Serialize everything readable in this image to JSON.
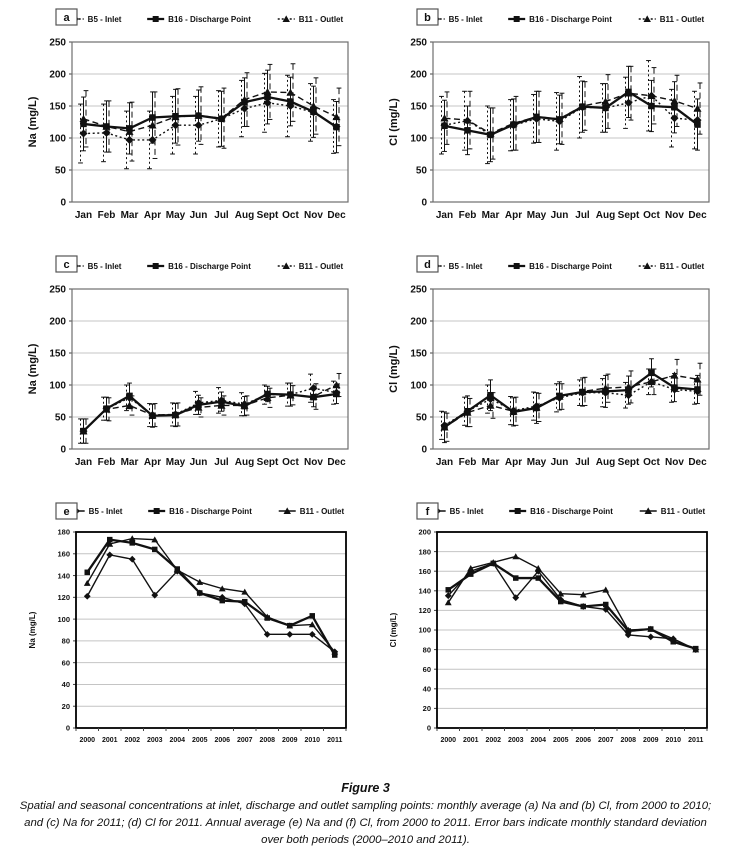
{
  "figure": {
    "title": "Figure 3",
    "caption": "Spatial and seasonal concentrations at inlet, discharge and outlet sampling points: monthly average (a) Na and (b) Cl, from 2000 to 2010; and (c) Na for 2011; (d) Cl for 2011. Annual average (e) Na and (f) Cl, from 2000 to 2011. Error bars indicate monthly standard deviation over both periods (2000–2010 and 2011)."
  },
  "colors": {
    "line": "#111111",
    "grid": "#c4c4c4",
    "monthly_border": "#6e6e6e",
    "annual_border": "#000000"
  },
  "chart_data": [
    {
      "id": "a",
      "panel_label": "a",
      "type": "line",
      "variant": "monthly",
      "ylabel": "Na (mg/L)",
      "ylim": [
        0,
        250
      ],
      "ytick_step": 50,
      "grid": true,
      "legend_position": "top",
      "error_bars": true,
      "categories": [
        "Jan",
        "Feb",
        "Mar",
        "Apr",
        "May",
        "Jun",
        "Jul",
        "Aug",
        "Sept",
        "Oct",
        "Nov",
        "Dec"
      ],
      "series": [
        {
          "name": "B5 - Inlet",
          "marker": "diamond",
          "line": "dotted",
          "values": [
            107,
            108,
            97,
            97,
            120,
            120,
            130,
            146,
            155,
            150,
            140,
            118
          ],
          "err": [
            46,
            45,
            45,
            45,
            45,
            45,
            44,
            44,
            46,
            48,
            45,
            42
          ]
        },
        {
          "name": "B16 - Discharge Point",
          "marker": "square",
          "line": "solid",
          "values": [
            122,
            118,
            115,
            132,
            134,
            135,
            130,
            156,
            164,
            157,
            141,
            117
          ],
          "err": [
            42,
            40,
            40,
            40,
            42,
            40,
            43,
            38,
            42,
            38,
            40,
            40
          ]
        },
        {
          "name": "B11 - Outlet",
          "marker": "triangle",
          "line": "dashed",
          "values": [
            130,
            118,
            110,
            120,
            133,
            135,
            131,
            160,
            172,
            171,
            150,
            133
          ],
          "err": [
            44,
            40,
            46,
            52,
            44,
            45,
            47,
            42,
            43,
            45,
            44,
            45
          ]
        }
      ]
    },
    {
      "id": "b",
      "panel_label": "b",
      "type": "line",
      "variant": "monthly",
      "ylabel": "Cl (mg/L)",
      "ylim": [
        0,
        250
      ],
      "ytick_step": 50,
      "grid": true,
      "legend_position": "top",
      "error_bars": true,
      "categories": [
        "Jan",
        "Feb",
        "Mar",
        "Apr",
        "May",
        "Jun",
        "Jul",
        "Aug",
        "Sept",
        "Oct",
        "Nov",
        "Dec"
      ],
      "series": [
        {
          "name": "B5 - Inlet",
          "marker": "diamond",
          "line": "dotted",
          "values": [
            120,
            127,
            105,
            120,
            130,
            126,
            148,
            147,
            155,
            166,
            131,
            128
          ],
          "err": [
            45,
            46,
            45,
            40,
            38,
            45,
            48,
            38,
            40,
            55,
            45,
            45
          ]
        },
        {
          "name": "B16 - Discharge Point",
          "marker": "square",
          "line": "solid",
          "values": [
            119,
            112,
            105,
            121,
            133,
            129,
            149,
            147,
            172,
            150,
            148,
            121
          ],
          "err": [
            40,
            38,
            42,
            40,
            40,
            38,
            40,
            38,
            40,
            40,
            40,
            40
          ]
        },
        {
          "name": "B11 - Outlet",
          "marker": "triangle",
          "line": "dashed",
          "values": [
            131,
            128,
            107,
            123,
            133,
            130,
            150,
            157,
            170,
            166,
            158,
            146
          ],
          "err": [
            41,
            45,
            40,
            42,
            40,
            40,
            38,
            42,
            42,
            44,
            40,
            40
          ]
        }
      ]
    },
    {
      "id": "c",
      "panel_label": "c",
      "type": "line",
      "variant": "monthly",
      "ylabel": "Na (mg/L)",
      "ylim": [
        0,
        250
      ],
      "ytick_step": 50,
      "grid": true,
      "legend_position": "top",
      "error_bars": true,
      "categories": [
        "Jan",
        "Feb",
        "Mar",
        "Apr",
        "May",
        "Jun",
        "Jul",
        "Aug",
        "Sept",
        "Oct",
        "Nov",
        "Dec"
      ],
      "series": [
        {
          "name": "B5 - Inlet",
          "marker": "diamond",
          "line": "dotted",
          "values": [
            28,
            63,
            80,
            53,
            54,
            72,
            76,
            70,
            85,
            85,
            95,
            88
          ],
          "err": [
            19,
            18,
            20,
            18,
            18,
            18,
            20,
            18,
            15,
            18,
            22,
            18
          ]
        },
        {
          "name": "B16 - Discharge Point",
          "marker": "square",
          "line": "solid",
          "values": [
            28,
            63,
            83,
            52,
            53,
            69,
            74,
            67,
            86,
            85,
            81,
            86
          ],
          "err": [
            19,
            18,
            20,
            18,
            18,
            15,
            15,
            15,
            12,
            18,
            15,
            15
          ]
        },
        {
          "name": "B11 - Outlet",
          "marker": "triangle",
          "line": "dashed",
          "values": [
            28,
            62,
            68,
            53,
            54,
            65,
            68,
            68,
            80,
            84,
            82,
            100
          ],
          "err": [
            19,
            18,
            15,
            18,
            18,
            15,
            15,
            15,
            15,
            15,
            20,
            18
          ]
        }
      ]
    },
    {
      "id": "d",
      "panel_label": "d",
      "type": "line",
      "variant": "monthly",
      "ylabel": "Cl (mg/L)",
      "ylim": [
        0,
        250
      ],
      "ytick_step": 50,
      "grid": true,
      "legend_position": "top",
      "error_bars": true,
      "categories": [
        "Jan",
        "Feb",
        "Mar",
        "Apr",
        "May",
        "Jun",
        "Jul",
        "Aug",
        "Sept",
        "Oct",
        "Nov",
        "Dec"
      ],
      "series": [
        {
          "name": "B5 - Inlet",
          "marker": "diamond",
          "line": "dotted",
          "values": [
            37,
            59,
            78,
            60,
            67,
            80,
            88,
            88,
            84,
            105,
            93,
            90
          ],
          "err": [
            22,
            22,
            22,
            22,
            22,
            22,
            20,
            22,
            20,
            20,
            20,
            20
          ]
        },
        {
          "name": "B16 - Discharge Point",
          "marker": "square",
          "line": "solid",
          "values": [
            34,
            59,
            84,
            58,
            64,
            83,
            89,
            90,
            92,
            119,
            96,
            93
          ],
          "err": [
            24,
            24,
            24,
            22,
            24,
            22,
            22,
            25,
            22,
            22,
            22,
            22
          ]
        },
        {
          "name": "B11 - Outlet",
          "marker": "triangle",
          "line": "dashed",
          "values": [
            34,
            57,
            68,
            59,
            65,
            82,
            90,
            95,
            97,
            105,
            115,
            109
          ],
          "err": [
            22,
            22,
            20,
            22,
            22,
            20,
            22,
            22,
            25,
            20,
            25,
            25
          ]
        }
      ]
    },
    {
      "id": "e",
      "panel_label": "e",
      "type": "line",
      "variant": "annual",
      "ylabel": "Na (mg/L)",
      "ylim": [
        0,
        180
      ],
      "ytick_step": 20,
      "grid": true,
      "legend_position": "top",
      "error_bars": false,
      "categories": [
        "2000",
        "2001",
        "2002",
        "2003",
        "2004",
        "2005",
        "2006",
        "2007",
        "2008",
        "2009",
        "2010",
        "2011"
      ],
      "series": [
        {
          "name": "B5 - Inlet",
          "marker": "diamond",
          "line": "solid",
          "values": [
            121,
            159,
            155,
            122,
            144,
            124,
            120,
            114,
            86,
            86,
            86,
            70
          ]
        },
        {
          "name": "B16 - Discharge Point",
          "marker": "square",
          "line": "solid",
          "values": [
            143,
            173,
            170,
            164,
            146,
            124,
            117,
            116,
            101,
            94,
            103,
            67
          ]
        },
        {
          "name": "B11 - Outlet",
          "marker": "triangle",
          "line": "solid",
          "values": [
            133,
            169,
            174,
            173,
            145,
            134,
            128,
            125,
            102,
            94,
            95,
            70
          ]
        }
      ]
    },
    {
      "id": "f",
      "panel_label": "f",
      "type": "line",
      "variant": "annual",
      "ylabel": "Cl (mg/L)",
      "ylim": [
        0,
        200
      ],
      "ytick_step": 20,
      "grid": true,
      "legend_position": "top",
      "error_bars": false,
      "categories": [
        "2000",
        "2001",
        "2002",
        "2003",
        "2004",
        "2005",
        "2006",
        "2007",
        "2008",
        "2009",
        "2010",
        "2011"
      ],
      "series": [
        {
          "name": "B5 - Inlet",
          "marker": "diamond",
          "line": "solid",
          "values": [
            135,
            160,
            168,
            133,
            160,
            131,
            124,
            121,
            95,
            93,
            91,
            80
          ]
        },
        {
          "name": "B16 - Discharge Point",
          "marker": "square",
          "line": "solid",
          "values": [
            141,
            157,
            168,
            153,
            153,
            129,
            124,
            126,
            99,
            101,
            88,
            81
          ]
        },
        {
          "name": "B11 - Outlet",
          "marker": "triangle",
          "line": "solid",
          "values": [
            128,
            163,
            169,
            175,
            163,
            137,
            136,
            141,
            100,
            101,
            91,
            80
          ]
        }
      ]
    }
  ]
}
